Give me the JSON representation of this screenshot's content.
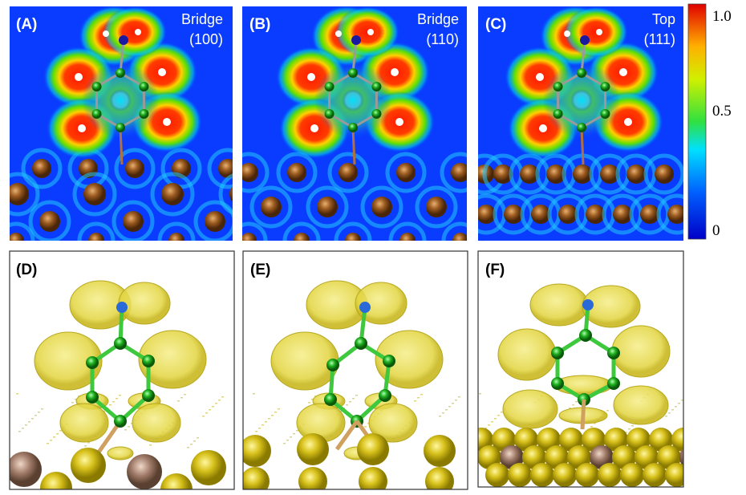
{
  "panels": [
    {
      "label": "(A)",
      "site": "Bridge",
      "facet": "(100)"
    },
    {
      "label": "(B)",
      "site": "Bridge",
      "facet": "(110)"
    },
    {
      "label": "(C)",
      "site": "Top",
      "facet": "(111)"
    },
    {
      "label": "(D)"
    },
    {
      "label": "(E)"
    },
    {
      "label": "(F)"
    }
  ],
  "colorbar": {
    "ticks": [
      "1.0",
      "0.5",
      "0"
    ]
  }
}
